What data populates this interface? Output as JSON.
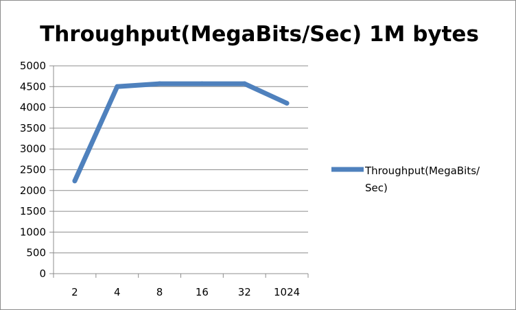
{
  "chart_data": {
    "type": "line",
    "title": "Throughput(MegaBits/Sec) 1M bytes",
    "xlabel": "",
    "ylabel": "",
    "categories": [
      "2",
      "4",
      "8",
      "16",
      "32",
      "1024"
    ],
    "series": [
      {
        "name": "Throughput(MegaBits/Sec)",
        "values": [
          2230,
          4500,
          4570,
          4570,
          4570,
          4100
        ],
        "color": "#4f81bd"
      }
    ],
    "ylim": [
      0,
      5000
    ],
    "yticks": [
      "0",
      "500",
      "1000",
      "1500",
      "2000",
      "2500",
      "3000",
      "3500",
      "4000",
      "4500",
      "5000"
    ],
    "grid": true,
    "legend_position": "right"
  }
}
